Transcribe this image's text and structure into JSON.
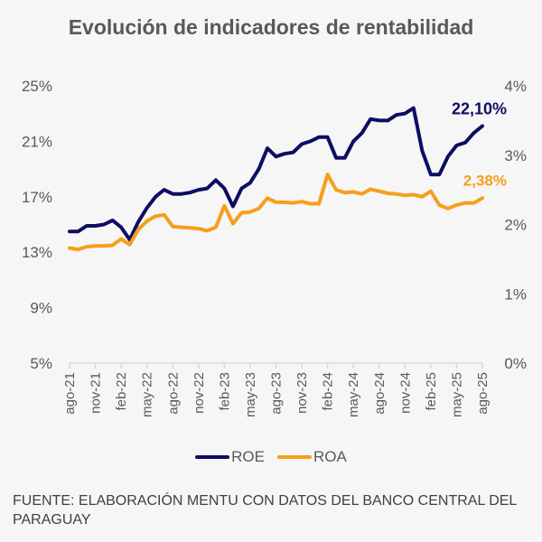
{
  "title": "Evolución de indicadores de rentabilidad",
  "colors": {
    "roe": "#0d0d63",
    "roa": "#f59f1c",
    "axis": "#d9d9d9",
    "text": "#595959"
  },
  "chart_data": {
    "type": "line",
    "title": "Evolución de indicadores de rentabilidad",
    "xlabel": "",
    "ylabel": "",
    "y_left": {
      "ticks": [
        "5%",
        "9%",
        "13%",
        "17%",
        "21%",
        "25%"
      ],
      "range": [
        5,
        25
      ],
      "series": "ROE"
    },
    "y_right": {
      "ticks": [
        "0%",
        "1%",
        "2%",
        "3%",
        "4%"
      ],
      "range": [
        0,
        4
      ],
      "series": "ROA"
    },
    "grid": false,
    "legend": "bottom",
    "x_ticks": [
      "ago-21",
      "nov-21",
      "feb-22",
      "may-22",
      "ago-22",
      "nov-22",
      "feb-23",
      "may-23",
      "ago-23",
      "nov-23",
      "feb-24",
      "may-24",
      "ago-24",
      "nov-24",
      "feb-25",
      "may-25",
      "ago-25"
    ],
    "x": [
      "ago-21",
      "sep-21",
      "oct-21",
      "nov-21",
      "dic-21",
      "ene-22",
      "feb-22",
      "mar-22",
      "abr-22",
      "may-22",
      "jun-22",
      "jul-22",
      "ago-22",
      "sep-22",
      "oct-22",
      "nov-22",
      "dic-22",
      "ene-23",
      "feb-23",
      "mar-23",
      "abr-23",
      "may-23",
      "jun-23",
      "jul-23",
      "ago-23",
      "sep-23",
      "oct-23",
      "nov-23",
      "dic-23",
      "ene-24",
      "feb-24",
      "mar-24",
      "abr-24",
      "may-24",
      "jun-24",
      "jul-24",
      "ago-24",
      "sep-24",
      "oct-24",
      "nov-24",
      "dic-24",
      "ene-25",
      "feb-25",
      "mar-25",
      "abr-25",
      "may-25",
      "jun-25",
      "jul-25",
      "ago-25"
    ],
    "series": [
      {
        "name": "ROE",
        "axis": "left",
        "values": [
          14.5,
          14.5,
          14.9,
          14.9,
          15.0,
          15.3,
          14.8,
          13.9,
          15.2,
          16.2,
          17.0,
          17.5,
          17.2,
          17.2,
          17.3,
          17.5,
          17.6,
          18.2,
          17.6,
          16.3,
          17.6,
          18.0,
          19.0,
          20.5,
          19.9,
          20.1,
          20.2,
          20.8,
          21.0,
          21.3,
          21.3,
          19.8,
          19.8,
          21.0,
          21.6,
          22.6,
          22.5,
          22.5,
          22.9,
          23.0,
          23.4,
          20.3,
          18.6,
          18.6,
          19.9,
          20.7,
          20.9,
          21.6,
          22.1
        ]
      },
      {
        "name": "ROA",
        "axis": "right",
        "values": [
          1.66,
          1.64,
          1.68,
          1.69,
          1.69,
          1.7,
          1.79,
          1.71,
          1.93,
          2.05,
          2.12,
          2.14,
          1.97,
          1.96,
          1.95,
          1.94,
          1.91,
          1.96,
          2.27,
          2.01,
          2.17,
          2.18,
          2.23,
          2.38,
          2.32,
          2.32,
          2.31,
          2.33,
          2.3,
          2.3,
          2.72,
          2.5,
          2.46,
          2.47,
          2.44,
          2.51,
          2.48,
          2.45,
          2.44,
          2.42,
          2.43,
          2.4,
          2.48,
          2.28,
          2.23,
          2.28,
          2.31,
          2.31,
          2.38
        ]
      }
    ],
    "annotations": [
      {
        "series": "ROE",
        "x": "ago-25",
        "text": "22,10%"
      },
      {
        "series": "ROA",
        "x": "ago-25",
        "text": "2,38%"
      }
    ]
  },
  "legend": {
    "items": [
      {
        "label": "ROE"
      },
      {
        "label": "ROA"
      }
    ]
  },
  "source": "FUENTE: ELABORACIÓN MENTU CON DATOS DEL BANCO CENTRAL DEL PARAGUAY"
}
